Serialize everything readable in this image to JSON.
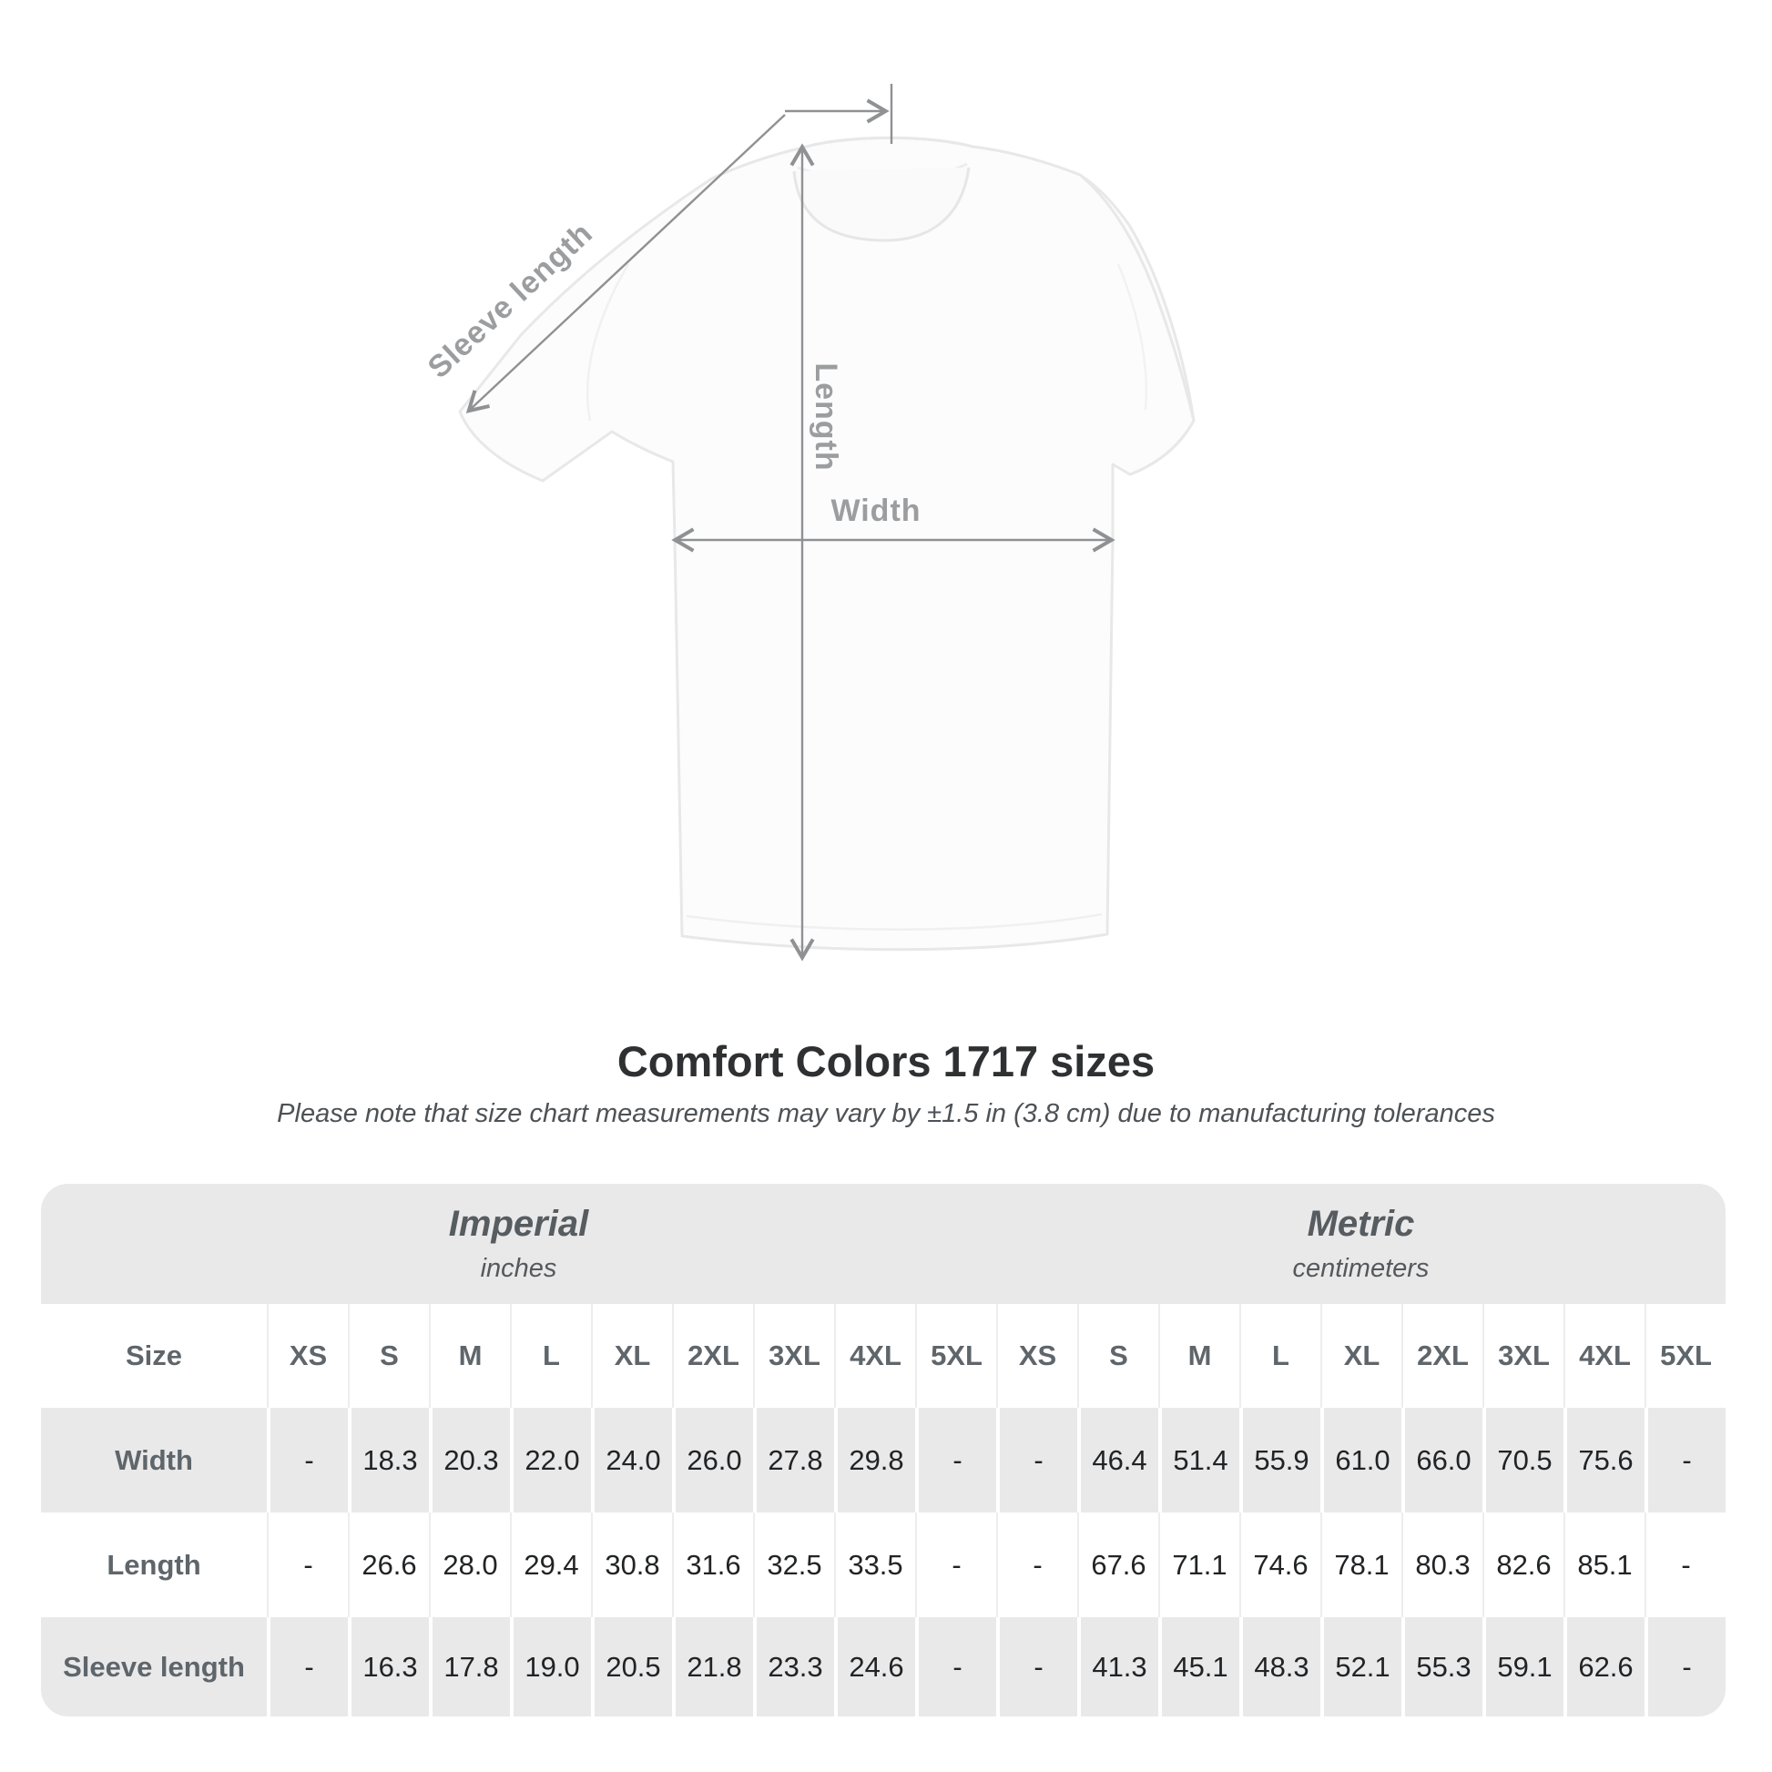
{
  "diagram": {
    "sleeve_label": "Sleeve length",
    "length_label": "Length",
    "width_label": "Width"
  },
  "heading": {
    "title": "Comfort Colors 1717 sizes",
    "subtitle": "Please note that size chart measurements may vary by ±1.5 in (3.8 cm) due to manufacturing tolerances"
  },
  "table": {
    "unit_groups": [
      {
        "label": "Imperial",
        "sublabel": "inches"
      },
      {
        "label": "Metric",
        "sublabel": "centimeters"
      }
    ],
    "size_header": "Size",
    "sizes": [
      "XS",
      "S",
      "M",
      "L",
      "XL",
      "2XL",
      "3XL",
      "4XL",
      "5XL"
    ],
    "rows": [
      {
        "label": "Width",
        "imperial": [
          "-",
          "18.3",
          "20.3",
          "22.0",
          "24.0",
          "26.0",
          "27.8",
          "29.8",
          "-"
        ],
        "metric": [
          "-",
          "46.4",
          "51.4",
          "55.9",
          "61.0",
          "66.0",
          "70.5",
          "75.6",
          "-"
        ]
      },
      {
        "label": "Length",
        "imperial": [
          "-",
          "26.6",
          "28.0",
          "29.4",
          "30.8",
          "31.6",
          "32.5",
          "33.5",
          "-"
        ],
        "metric": [
          "-",
          "67.6",
          "71.1",
          "74.6",
          "78.1",
          "80.3",
          "82.6",
          "85.1",
          "-"
        ]
      },
      {
        "label": "Sleeve length",
        "imperial": [
          "-",
          "16.3",
          "17.8",
          "19.0",
          "20.5",
          "21.8",
          "23.3",
          "24.6",
          "-"
        ],
        "metric": [
          "-",
          "41.3",
          "45.1",
          "48.3",
          "52.1",
          "55.3",
          "59.1",
          "62.6",
          "-"
        ]
      }
    ]
  },
  "colors": {
    "panel_gray": "#e9e9ea",
    "line_gray": "#8f9193",
    "label_gray": "#9b9d9f",
    "text_dark": "#212325",
    "header_text": "#5f666b"
  }
}
